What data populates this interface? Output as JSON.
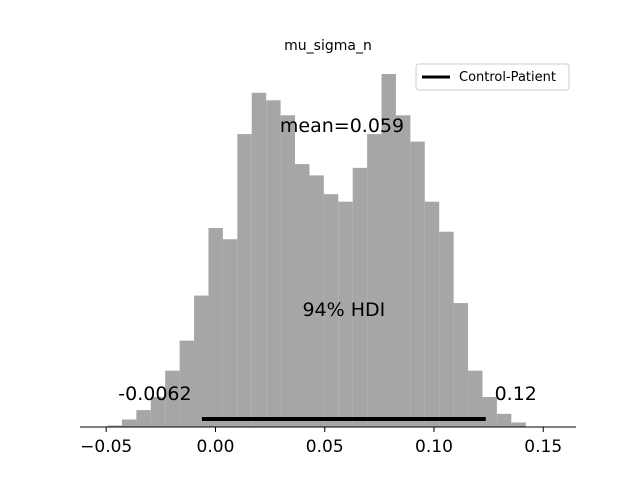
{
  "chart_data": {
    "type": "bar",
    "title": "mu_sigma_n",
    "xlabel": "",
    "ylabel": "",
    "xlim": [
      -0.062,
      0.165
    ],
    "bin_width": 0.0066,
    "bins_start": -0.0494,
    "values": [
      0.4,
      2,
      4.5,
      8,
      15,
      23,
      35,
      53,
      50,
      78,
      89,
      87,
      83,
      70,
      67,
      62,
      60,
      69,
      78,
      94,
      83,
      76,
      60,
      52,
      33,
      15,
      8,
      3.5,
      1.2
    ],
    "xticks": [
      -0.05,
      0.0,
      0.05,
      0.1,
      0.15
    ],
    "xtick_labels": [
      "−0.05",
      "0.00",
      "0.05",
      "0.10",
      "0.15"
    ],
    "bar_color": "#a6a6a6",
    "hdi": {
      "low": -0.0062,
      "high": 0.1237,
      "low_label": "-0.0062",
      "high_label": "0.12",
      "label": "94% HDI",
      "color": "#000000"
    },
    "mean_label": "mean=0.059",
    "legend": {
      "entries": [
        "Control-Patient"
      ],
      "placement": "top-right"
    },
    "grid": false
  }
}
